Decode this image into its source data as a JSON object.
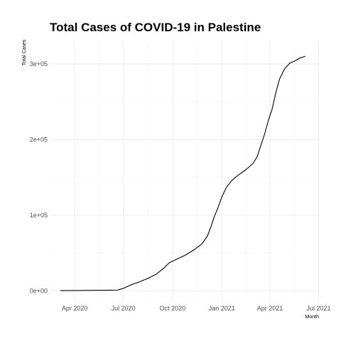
{
  "chart_data": {
    "type": "line",
    "title": "Total Cases of COVID-19 in Palestine",
    "xlabel": "Month",
    "ylabel": "Total Cases",
    "grid": true,
    "legend": "none",
    "line_color": "#000000",
    "xlim": [
      "2020-02-17",
      "2021-07-03"
    ],
    "ylim": [
      -14000,
      330000
    ],
    "x_ticks": [
      {
        "date": "2020-04-01",
        "label": "Apr 2020"
      },
      {
        "date": "2020-07-01",
        "label": "Jul 2020"
      },
      {
        "date": "2020-10-01",
        "label": "Oct 2020"
      },
      {
        "date": "2021-01-01",
        "label": "Jan 2021"
      },
      {
        "date": "2021-04-01",
        "label": "Apr 2021"
      },
      {
        "date": "2021-07-01",
        "label": "Jul 2021"
      }
    ],
    "y_ticks": [
      {
        "value": 0,
        "label": "0e+00"
      },
      {
        "value": 100000,
        "label": "1e+05"
      },
      {
        "value": 200000,
        "label": "2e+05"
      },
      {
        "value": 300000,
        "label": "3e+05"
      }
    ],
    "series": [
      {
        "points": [
          {
            "x": "2020-03-05",
            "y": 0
          },
          {
            "x": "2020-04-01",
            "y": 200
          },
          {
            "x": "2020-05-01",
            "y": 400
          },
          {
            "x": "2020-06-01",
            "y": 500
          },
          {
            "x": "2020-06-20",
            "y": 800
          },
          {
            "x": "2020-07-01",
            "y": 3000
          },
          {
            "x": "2020-07-15",
            "y": 7500
          },
          {
            "x": "2020-08-01",
            "y": 12000
          },
          {
            "x": "2020-08-15",
            "y": 16000
          },
          {
            "x": "2020-09-01",
            "y": 22000
          },
          {
            "x": "2020-09-15",
            "y": 30000
          },
          {
            "x": "2020-09-25",
            "y": 37000
          },
          {
            "x": "2020-10-10",
            "y": 42000
          },
          {
            "x": "2020-10-25",
            "y": 47000
          },
          {
            "x": "2020-11-10",
            "y": 54000
          },
          {
            "x": "2020-11-25",
            "y": 62000
          },
          {
            "x": "2020-12-05",
            "y": 72000
          },
          {
            "x": "2020-12-12",
            "y": 85000
          },
          {
            "x": "2020-12-18",
            "y": 98000
          },
          {
            "x": "2020-12-25",
            "y": 110000
          },
          {
            "x": "2021-01-01",
            "y": 124000
          },
          {
            "x": "2021-01-10",
            "y": 137000
          },
          {
            "x": "2021-01-20",
            "y": 146000
          },
          {
            "x": "2021-02-01",
            "y": 153000
          },
          {
            "x": "2021-02-15",
            "y": 160000
          },
          {
            "x": "2021-02-28",
            "y": 168000
          },
          {
            "x": "2021-03-08",
            "y": 177000
          },
          {
            "x": "2021-03-15",
            "y": 192000
          },
          {
            "x": "2021-03-22",
            "y": 207000
          },
          {
            "x": "2021-03-29",
            "y": 225000
          },
          {
            "x": "2021-04-05",
            "y": 240000
          },
          {
            "x": "2021-04-12",
            "y": 262000
          },
          {
            "x": "2021-04-19",
            "y": 280000
          },
          {
            "x": "2021-04-28",
            "y": 293000
          },
          {
            "x": "2021-05-08",
            "y": 301000
          },
          {
            "x": "2021-05-18",
            "y": 304000
          },
          {
            "x": "2021-05-28",
            "y": 308000
          },
          {
            "x": "2021-06-06",
            "y": 310000
          }
        ]
      }
    ]
  }
}
